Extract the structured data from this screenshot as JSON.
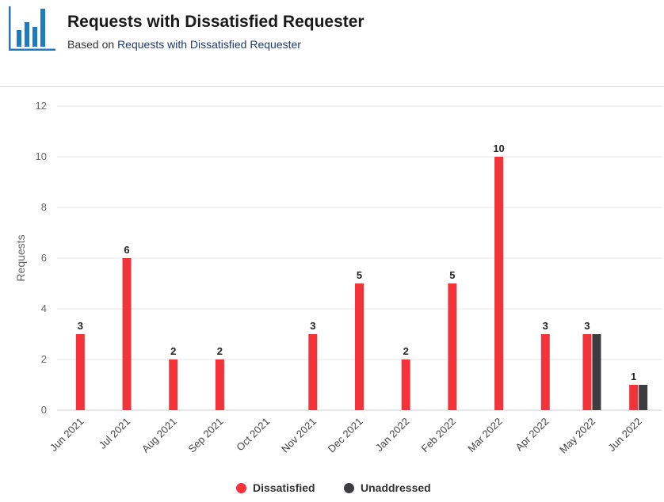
{
  "header": {
    "title": "Requests with Dissatisfied Requester",
    "subtitle_prefix": "Based on ",
    "subtitle_link": "Requests with Dissatisfied Requester",
    "logo_icon": "bar-chart-icon",
    "logo_color": "#1f7bc1"
  },
  "chart_data": {
    "type": "bar",
    "ylabel": "Requests",
    "xlabel": "",
    "ylim": [
      0,
      12
    ],
    "yticks": [
      0,
      2,
      4,
      6,
      8,
      10,
      12
    ],
    "grid": true,
    "legend_position": "bottom-center",
    "categories": [
      "Jun 2021",
      "Jul 2021",
      "Aug 2021",
      "Sep 2021",
      "Oct 2021",
      "Nov 2021",
      "Dec 2021",
      "Jan 2022",
      "Feb 2022",
      "Mar 2022",
      "Apr 2022",
      "May 2022",
      "Jun 2022"
    ],
    "series": [
      {
        "name": "Dissatisfied",
        "color": "#f2333a",
        "values": [
          3,
          6,
          2,
          2,
          0,
          3,
          5,
          2,
          5,
          10,
          3,
          3,
          1
        ],
        "data_labels": [
          "3",
          "6",
          "2",
          "2",
          "",
          "3",
          "5",
          "2",
          "5",
          "10",
          "3",
          "3",
          "1"
        ]
      },
      {
        "name": "Unaddressed",
        "color": "#3d3d40",
        "values": [
          0,
          0,
          0,
          0,
          0,
          0,
          0,
          0,
          0,
          0,
          0,
          3,
          1
        ],
        "data_labels": [
          "",
          "",
          "",
          "",
          "",
          "",
          "",
          "",
          "",
          "",
          "",
          "",
          ""
        ]
      }
    ]
  },
  "legend": {
    "items": [
      {
        "label": "Dissatisfied",
        "color": "#f2333a"
      },
      {
        "label": "Unaddressed",
        "color": "#3d3d40"
      }
    ]
  }
}
